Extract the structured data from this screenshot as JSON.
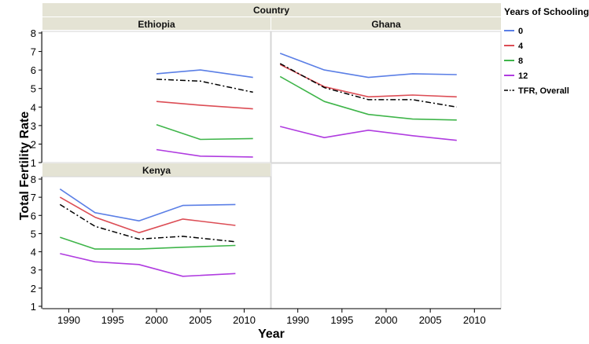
{
  "chart_data": {
    "type": "line",
    "facet_label": "Country",
    "xlabel": "Year",
    "ylabel": "Total Fertility Rate",
    "xlim": [
      1987,
      2013
    ],
    "ylim": [
      1,
      8
    ],
    "x_ticks": [
      1990,
      1995,
      2000,
      2005,
      2010
    ],
    "y_ticks": [
      1,
      2,
      3,
      4,
      5,
      6,
      7,
      8
    ],
    "legend": {
      "title": "Years of Schooling",
      "position": "right",
      "entries": [
        {
          "label": "0",
          "color": "#5b7fe6",
          "dash": "solid"
        },
        {
          "label": "4",
          "color": "#dc4d55",
          "dash": "solid"
        },
        {
          "label": "8",
          "color": "#3fb54a",
          "dash": "solid"
        },
        {
          "label": "12",
          "color": "#b03ce0",
          "dash": "solid"
        },
        {
          "label": "TFR, Overall",
          "color": "#000000",
          "dash": "dashdot"
        }
      ]
    },
    "panels": [
      {
        "name": "Ethiopia",
        "series": [
          {
            "name": "0",
            "x": [
              2000,
              2005,
              2011
            ],
            "y": [
              5.8,
              6.0,
              5.6
            ]
          },
          {
            "name": "4",
            "x": [
              2000,
              2005,
              2011
            ],
            "y": [
              4.3,
              4.1,
              3.9
            ]
          },
          {
            "name": "8",
            "x": [
              2000,
              2005,
              2011
            ],
            "y": [
              3.05,
              2.25,
              2.3
            ]
          },
          {
            "name": "12",
            "x": [
              2000,
              2005,
              2011
            ],
            "y": [
              1.7,
              1.35,
              1.3
            ]
          },
          {
            "name": "TFR, Overall",
            "x": [
              2000,
              2005,
              2011
            ],
            "y": [
              5.5,
              5.4,
              4.8
            ]
          }
        ]
      },
      {
        "name": "Ghana",
        "series": [
          {
            "name": "0",
            "x": [
              1988,
              1993,
              1998,
              2003,
              2008
            ],
            "y": [
              6.9,
              6.0,
              5.6,
              5.8,
              5.75
            ]
          },
          {
            "name": "4",
            "x": [
              1988,
              1993,
              1998,
              2003,
              2008
            ],
            "y": [
              6.3,
              5.1,
              4.55,
              4.65,
              4.55
            ]
          },
          {
            "name": "8",
            "x": [
              1988,
              1993,
              1998,
              2003,
              2008
            ],
            "y": [
              5.65,
              4.3,
              3.6,
              3.35,
              3.3
            ]
          },
          {
            "name": "12",
            "x": [
              1988,
              1993,
              1998,
              2003,
              2008
            ],
            "y": [
              2.95,
              2.35,
              2.75,
              2.45,
              2.2
            ]
          },
          {
            "name": "TFR, Overall",
            "x": [
              1988,
              1993,
              1998,
              2003,
              2008
            ],
            "y": [
              6.35,
              5.05,
              4.4,
              4.4,
              4.0
            ]
          }
        ]
      },
      {
        "name": "Kenya",
        "series": [
          {
            "name": "0",
            "x": [
              1989,
              1993,
              1998,
              2003,
              2009
            ],
            "y": [
              7.45,
              6.15,
              5.7,
              6.55,
              6.6
            ]
          },
          {
            "name": "4",
            "x": [
              1989,
              1993,
              1998,
              2003,
              2009
            ],
            "y": [
              7.0,
              5.9,
              5.05,
              5.8,
              5.45
            ]
          },
          {
            "name": "8",
            "x": [
              1989,
              1993,
              1998,
              2003,
              2009
            ],
            "y": [
              4.8,
              4.15,
              4.15,
              4.25,
              4.35
            ]
          },
          {
            "name": "12",
            "x": [
              1989,
              1993,
              1998,
              2003,
              2009
            ],
            "y": [
              3.9,
              3.45,
              3.3,
              2.65,
              2.8
            ]
          },
          {
            "name": "TFR, Overall",
            "x": [
              1989,
              1993,
              1998,
              2003,
              2009
            ],
            "y": [
              6.6,
              5.4,
              4.7,
              4.85,
              4.55
            ]
          }
        ]
      }
    ]
  }
}
